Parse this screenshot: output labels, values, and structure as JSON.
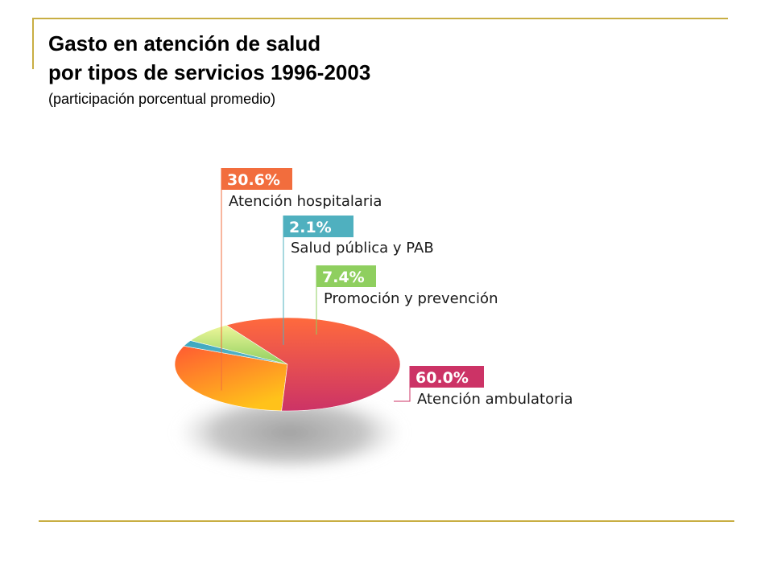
{
  "header": {
    "title_line1": "Gasto en atención de salud",
    "title_line2": "por tipos de servicios 1996-2003",
    "subtitle": "(participación porcentual promedio)"
  },
  "chart_data": {
    "type": "pie",
    "title": "Gasto en atención de salud por tipos de servicios 1996-2003",
    "subtitle": "(participación porcentual promedio)",
    "unit": "%",
    "slices": [
      {
        "label": "Atención hospitalaria",
        "value": 30.6,
        "value_label": "30.6%",
        "color": "#f26d3d",
        "gradient": [
          "#ffc21a",
          "#ff5a32"
        ]
      },
      {
        "label": "Salud pública y PAB",
        "value": 2.1,
        "value_label": "2.1%",
        "color": "#4fb0bf",
        "gradient": [
          "#3aa6bf",
          "#5fb8c8"
        ]
      },
      {
        "label": "Promoción y prevención",
        "value": 7.4,
        "value_label": "7.4%",
        "color": "#8fcf5f",
        "gradient": [
          "#eef79a",
          "#8fcf5f"
        ]
      },
      {
        "label": "Atención ambulatoria",
        "value": 60.0,
        "value_label": "60.0%",
        "color": "#cc3366",
        "gradient": [
          "#ff6a3d",
          "#cc3366"
        ]
      }
    ],
    "frame_color": "#c8ae43"
  }
}
